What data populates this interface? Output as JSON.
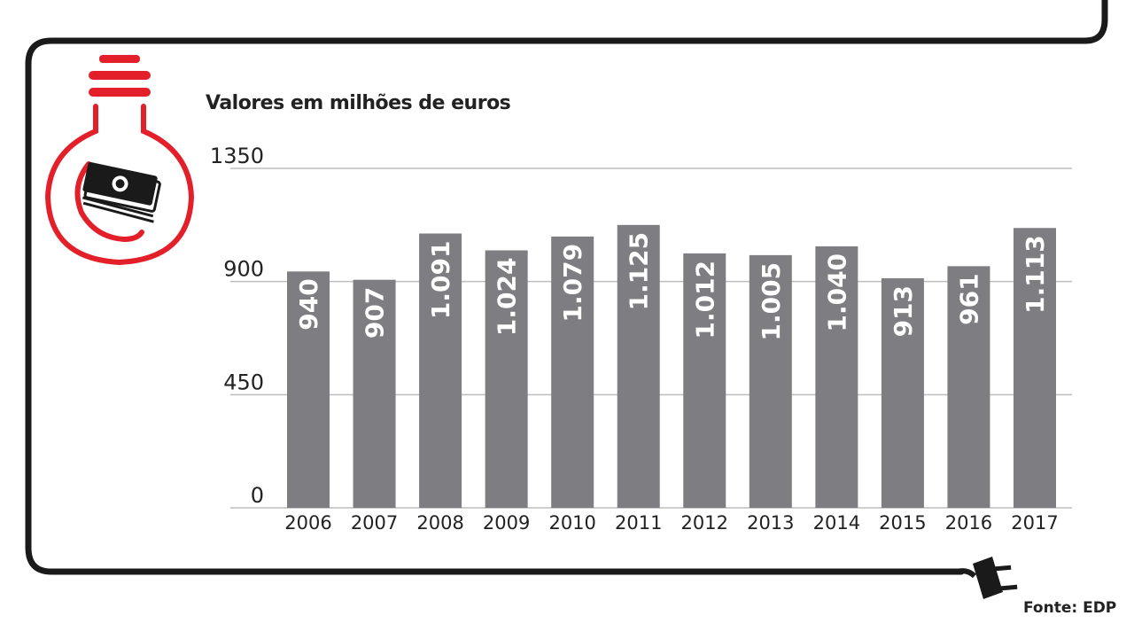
{
  "chart_data": {
    "type": "bar",
    "subtitle": "Valores em milhões de euros",
    "categories": [
      "2006",
      "2007",
      "2008",
      "2009",
      "2010",
      "2011",
      "2012",
      "2013",
      "2014",
      "2015",
      "2016",
      "2017"
    ],
    "values": [
      940,
      907,
      1091,
      1024,
      1079,
      1125,
      1012,
      1005,
      1040,
      913,
      961,
      1113
    ],
    "value_labels": [
      "940",
      "907",
      "1.091",
      "1.024",
      "1.079",
      "1.125",
      "1.012",
      "1.005",
      "1.040",
      "913",
      "961",
      "1.113"
    ],
    "yticks": [
      "0",
      "450",
      "900",
      "1350"
    ],
    "ylim": [
      0,
      1350
    ],
    "grid": true,
    "bar_color": "#7e7e82",
    "label_color": "#ffffff",
    "grid_color": "#bdbdbd",
    "source": "Fonte: EDP"
  },
  "colors": {
    "frame": "#1a1a1a",
    "accent": "#e3202a",
    "text": "#222222"
  },
  "icons": [
    "light-bulb-icon",
    "money-icon",
    "plug-icon"
  ]
}
